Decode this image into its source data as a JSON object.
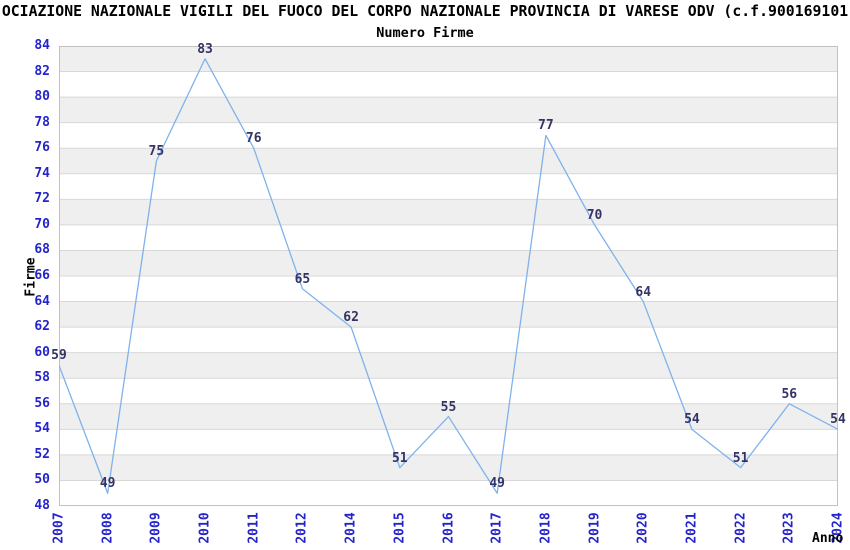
{
  "header": {
    "title": "OCIAZIONE NAZIONALE VIGILI DEL FUOCO DEL CORPO NAZIONALE PROVINCIA DI VARESE ODV (c.f.900169101",
    "subtitle": "Numero Firme"
  },
  "chart_data": {
    "type": "line",
    "title": "OCIAZIONE NAZIONALE VIGILI DEL FUOCO DEL CORPO NAZIONALE PROVINCIA DI VARESE ODV (c.f.900169101",
    "subtitle": "Numero Firme",
    "x": [
      "2007",
      "2008",
      "2009",
      "2010",
      "2011",
      "2012",
      "2014",
      "2015",
      "2016",
      "2017",
      "2018",
      "2019",
      "2020",
      "2021",
      "2022",
      "2023",
      "2024"
    ],
    "values": [
      59,
      49,
      75,
      83,
      76,
      65,
      62,
      51,
      55,
      49,
      77,
      70,
      64,
      54,
      51,
      56,
      54
    ],
    "xlabel": "Anno",
    "ylabel": "Firme",
    "ylim": [
      48,
      84
    ],
    "ytick_step": 2,
    "grid": true,
    "legend": "none",
    "value_labels_shown": true,
    "colors": {
      "line": "#7FB2EC",
      "tick_label": "#2424CC",
      "value_label": "#333366",
      "band_light": "#FFFFFF",
      "band_dark": "#EFEFEF",
      "grid_line": "#D8D8D8",
      "plot_border": "#C2C2C2",
      "background": "#FFFFFF",
      "text": "#000000"
    }
  }
}
